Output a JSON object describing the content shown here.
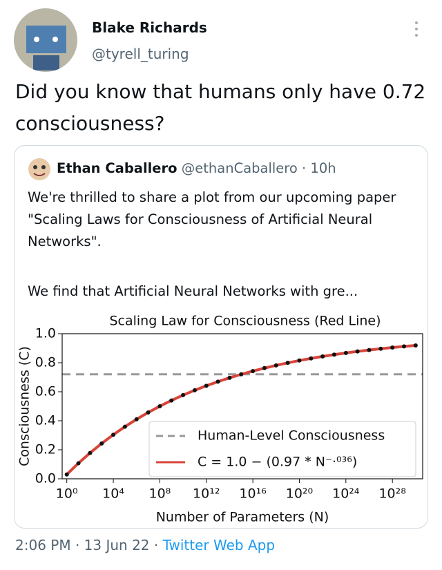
{
  "tweet": {
    "author_name": "Blake Richards",
    "author_handle": "@tyrell_turing",
    "text": "Did you know that humans only have 0.72 consciousness?",
    "timestamp": "2:06 PM · 13 Jun 22 · ",
    "source": "Twitter Web App"
  },
  "quoted_tweet": {
    "author_name": "Ethan Caballero",
    "author_handle": "@ethanCaballero",
    "time": "· 10h",
    "paragraphs": [
      "We're thrilled to share a plot from our upcoming paper \"Scaling Laws for Consciousness of Artificial Neural Networks\".",
      "We find that Artificial Neural Networks with gre..."
    ]
  },
  "chart_data": {
    "type": "line",
    "title": "Scaling Law for Consciousness (Red Line)",
    "x_label": "Number of Parameters (N)",
    "y_label": "Consciousness (C)",
    "xscale": "log",
    "xlim": [
      0.4,
      4e+30
    ],
    "ylim": [
      0,
      1
    ],
    "xticks": [
      {
        "value": 1,
        "label": "10⁰"
      },
      {
        "value": 10000.0,
        "label": "10⁴"
      },
      {
        "value": 100000000.0,
        "label": "10⁸"
      },
      {
        "value": 1000000000000.0,
        "label": "10¹²"
      },
      {
        "value": 1e+16,
        "label": "10¹⁶"
      },
      {
        "value": 1e+20,
        "label": "10²⁰"
      },
      {
        "value": 1e+24,
        "label": "10²⁴"
      },
      {
        "value": 1e+28,
        "label": "10²⁸"
      }
    ],
    "yticks": [
      {
        "value": 0,
        "label": "0.0"
      },
      0.2,
      0.4,
      0.6,
      0.8,
      {
        "value": 1,
        "label": "1.0"
      }
    ],
    "x": [
      1,
      10.0,
      100.0,
      1000.0,
      10000.0,
      100000.0,
      1000000.0,
      10000000.0,
      100000000.0,
      1000000000.0,
      10000000000.0,
      100000000000.0,
      1000000000000.0,
      10000000000000.0,
      100000000000000.0,
      1000000000000000.0,
      1e+16,
      1e+17,
      1e+18,
      1e+19,
      1e+20,
      1e+21,
      1e+22,
      1e+23,
      1e+24,
      1e+25,
      1e+26,
      1e+27,
      1e+28,
      1e+29,
      1e+30
    ],
    "series": [
      {
        "name": "C = 1.0 − (0.97 * N⁻·⁰³⁶)",
        "color": "#d9443a",
        "marker_color": "#111111",
        "values": [
          0.03,
          0.1072,
          0.1782,
          0.2436,
          0.3038,
          0.3591,
          0.4101,
          0.457,
          0.5002,
          0.54,
          0.5766,
          0.6103,
          0.6413,
          0.6698,
          0.6961,
          0.7203,
          0.7425,
          0.763,
          0.7818,
          0.7992,
          0.8152,
          0.8299,
          0.8434,
          0.8559,
          0.8673,
          0.8779,
          0.8876,
          0.8965,
          0.9047,
          0.9123,
          0.9193
        ]
      }
    ],
    "reference_line": {
      "name": "Human-Level Consciousness",
      "value": 0.72,
      "color": "#999999"
    },
    "legend_position": "lower right"
  }
}
